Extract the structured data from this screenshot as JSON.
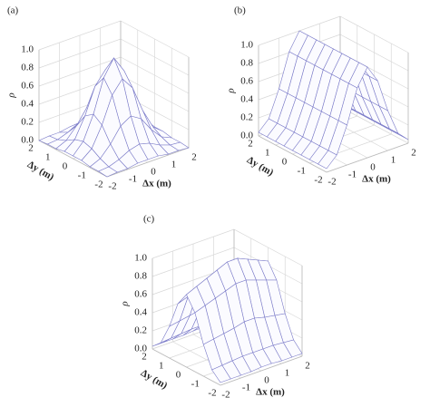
{
  "chart_data": [
    {
      "type": "surface3d",
      "label": "(a)",
      "xlabel": "Δx (m)",
      "ylabel": "Δy (m)",
      "zlabel": "ρ",
      "color": "#7a7ac8",
      "x": [
        -2,
        -1.5,
        -1,
        -0.5,
        0,
        0.5,
        1,
        1.5,
        2
      ],
      "y": [
        -2,
        -1.5,
        -1,
        -0.5,
        0,
        0.5,
        1,
        1.5,
        2
      ],
      "z": [
        [
          0.0,
          0.01,
          0.01,
          0.03,
          0.03,
          0.03,
          0.01,
          0.01,
          0.0
        ],
        [
          0.01,
          0.02,
          0.06,
          0.12,
          0.15,
          0.12,
          0.06,
          0.02,
          0.01
        ],
        [
          0.01,
          0.06,
          0.18,
          0.34,
          0.41,
          0.34,
          0.18,
          0.06,
          0.01
        ],
        [
          0.03,
          0.12,
          0.34,
          0.63,
          0.77,
          0.63,
          0.34,
          0.12,
          0.03
        ],
        [
          0.03,
          0.15,
          0.41,
          0.77,
          0.95,
          0.77,
          0.41,
          0.15,
          0.03
        ],
        [
          0.03,
          0.12,
          0.34,
          0.63,
          0.77,
          0.63,
          0.34,
          0.12,
          0.03
        ],
        [
          0.01,
          0.06,
          0.18,
          0.34,
          0.41,
          0.34,
          0.18,
          0.06,
          0.01
        ],
        [
          0.01,
          0.02,
          0.06,
          0.12,
          0.15,
          0.12,
          0.06,
          0.02,
          0.01
        ],
        [
          0.0,
          0.01,
          0.01,
          0.03,
          0.03,
          0.03,
          0.01,
          0.01,
          0.0
        ]
      ],
      "xlim": [
        -2,
        2
      ],
      "ylim": [
        -2,
        2
      ],
      "zlim": [
        0,
        1
      ],
      "xticks": [
        -2,
        -1,
        0,
        1,
        2
      ],
      "yticks": [
        -2,
        -1,
        0,
        1,
        2
      ],
      "zticks": [
        {
          "value": 0,
          "label": "0.0"
        },
        {
          "value": 0.2,
          "label": "0.2"
        },
        {
          "value": 0.4,
          "label": "0.4"
        },
        {
          "value": 0.6,
          "label": "0.6"
        },
        {
          "value": 0.8,
          "label": "0.8"
        },
        {
          "value": 1,
          "label": "1.0"
        }
      ],
      "grid": true
    },
    {
      "type": "surface3d",
      "label": "(b)",
      "xlabel": "Δx (m)",
      "ylabel": "Δy (m)",
      "zlabel": "ρ",
      "color": "#7a7ac8",
      "x": [
        -2,
        -1.5,
        -1,
        -0.5,
        0,
        0.5,
        1,
        1.5,
        2
      ],
      "y": [
        -2,
        -1.5,
        -1,
        -0.5,
        0,
        0.5,
        1,
        1.5,
        2
      ],
      "z": [
        [
          0.04,
          0.15,
          0.44,
          0.81,
          1.0,
          0.81,
          0.44,
          0.15,
          0.04
        ],
        [
          0.04,
          0.15,
          0.44,
          0.81,
          1.0,
          0.81,
          0.44,
          0.15,
          0.04
        ],
        [
          0.04,
          0.15,
          0.44,
          0.81,
          1.0,
          0.81,
          0.44,
          0.15,
          0.04
        ],
        [
          0.04,
          0.15,
          0.44,
          0.81,
          1.0,
          0.81,
          0.44,
          0.15,
          0.04
        ],
        [
          0.04,
          0.15,
          0.44,
          0.81,
          1.0,
          0.81,
          0.44,
          0.15,
          0.04
        ],
        [
          0.04,
          0.15,
          0.44,
          0.81,
          1.0,
          0.81,
          0.44,
          0.15,
          0.04
        ],
        [
          0.04,
          0.15,
          0.44,
          0.81,
          1.0,
          0.81,
          0.44,
          0.15,
          0.04
        ],
        [
          0.04,
          0.15,
          0.44,
          0.81,
          1.0,
          0.81,
          0.44,
          0.15,
          0.04
        ],
        [
          0.04,
          0.15,
          0.44,
          0.81,
          1.0,
          0.81,
          0.44,
          0.15,
          0.04
        ]
      ],
      "xlim": [
        -2,
        2
      ],
      "ylim": [
        -2,
        2
      ],
      "zlim": [
        0,
        1
      ],
      "xticks": [
        -2,
        -1,
        0,
        1,
        2
      ],
      "yticks": [
        -2,
        -1,
        0,
        1,
        2
      ],
      "zticks": [
        {
          "value": 0,
          "label": "0.0"
        },
        {
          "value": 0.2,
          "label": "0.2"
        },
        {
          "value": 0.4,
          "label": "0.4"
        },
        {
          "value": 0.6,
          "label": "0.6"
        },
        {
          "value": 0.8,
          "label": "0.8"
        },
        {
          "value": 1,
          "label": "1.0"
        }
      ],
      "grid": true
    },
    {
      "type": "surface3d",
      "label": "(c)",
      "xlabel": "Δx (m)",
      "ylabel": "Δy (m)",
      "zlabel": "ρ",
      "color": "#7a7ac8",
      "x": [
        -2,
        -1.5,
        -1,
        -0.5,
        0,
        0.5,
        1,
        1.5,
        2
      ],
      "y": [
        -2,
        -1.5,
        -1,
        -0.5,
        0,
        0.5,
        1,
        1.5,
        2
      ],
      "z": [
        [
          0.03,
          0.03,
          0.03,
          0.03,
          0.04,
          0.04,
          0.03,
          0.03,
          0.03
        ],
        [
          0.12,
          0.13,
          0.14,
          0.15,
          0.15,
          0.15,
          0.15,
          0.14,
          0.13
        ],
        [
          0.35,
          0.37,
          0.39,
          0.41,
          0.44,
          0.44,
          0.41,
          0.39,
          0.37
        ],
        [
          0.65,
          0.69,
          0.73,
          0.77,
          0.81,
          0.81,
          0.77,
          0.73,
          0.69
        ],
        [
          0.8,
          0.85,
          0.9,
          0.95,
          1.0,
          1.0,
          0.95,
          0.9,
          0.85
        ],
        [
          0.65,
          0.69,
          0.73,
          0.77,
          0.81,
          0.81,
          0.77,
          0.73,
          0.69
        ],
        [
          0.35,
          0.37,
          0.39,
          0.41,
          0.44,
          0.44,
          0.41,
          0.39,
          0.37
        ],
        [
          0.12,
          0.13,
          0.14,
          0.15,
          0.15,
          0.15,
          0.15,
          0.14,
          0.13
        ],
        [
          0.03,
          0.03,
          0.03,
          0.03,
          0.04,
          0.04,
          0.03,
          0.03,
          0.03
        ]
      ],
      "xlim": [
        -2,
        2
      ],
      "ylim": [
        -2,
        2
      ],
      "zlim": [
        0,
        1
      ],
      "xticks": [
        -2,
        -1,
        0,
        1,
        2
      ],
      "yticks": [
        -2,
        -1,
        0,
        1,
        2
      ],
      "zticks": [
        {
          "value": 0,
          "label": "0.0"
        },
        {
          "value": 0.2,
          "label": "0.2"
        },
        {
          "value": 0.4,
          "label": "0.4"
        },
        {
          "value": 0.6,
          "label": "0.6"
        },
        {
          "value": 0.8,
          "label": "0.8"
        },
        {
          "value": 1,
          "label": "1.0"
        }
      ],
      "grid": true
    }
  ]
}
